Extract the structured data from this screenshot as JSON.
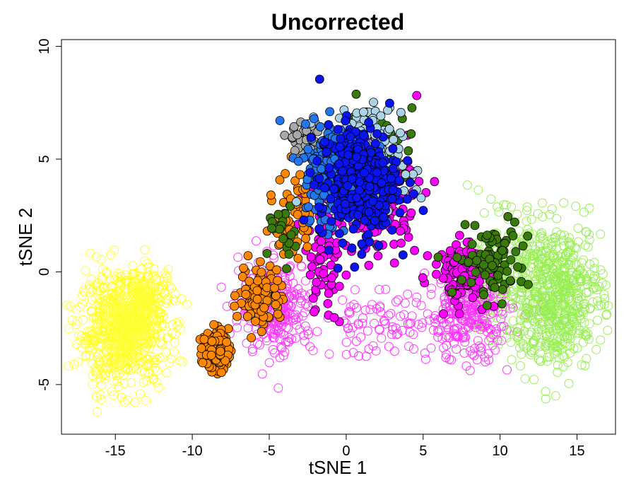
{
  "chart_data": {
    "type": "scatter",
    "title": "Uncorrected",
    "xlabel": "tSNE 1",
    "ylabel": "tSNE 2",
    "xlim": [
      -18.5,
      17.5
    ],
    "ylim": [
      -7.2,
      10.3
    ],
    "x_ticks": [
      -15,
      -10,
      -5,
      0,
      5,
      10,
      15
    ],
    "y_ticks": [
      -5,
      0,
      5,
      10
    ],
    "tick_labels_x": [
      "-15",
      "-10",
      "-5",
      "0",
      "5",
      "10",
      "15"
    ],
    "tick_labels_y": [
      "-5",
      "0",
      "5",
      "10"
    ],
    "grid": false,
    "legend": "none",
    "marker_style": {
      "filled_outline": "#000000",
      "open_marker": "circle"
    },
    "series": [
      {
        "color": "#FFFF33",
        "marker": "open",
        "clusters": [
          {
            "center": [
              -14.5,
              -2.6
            ],
            "spread": [
              1.9,
              1.6
            ],
            "n": 700
          },
          {
            "center": [
              -13.0,
              -1.2
            ],
            "spread": [
              1.2,
              1.0
            ],
            "n": 150
          }
        ]
      },
      {
        "color": "#FF33FF",
        "marker": "open",
        "clusters": [
          {
            "center": [
              -4.5,
              -1.6
            ],
            "spread": [
              1.6,
              1.4
            ],
            "n": 260
          },
          {
            "center": [
              8.0,
              -1.8
            ],
            "spread": [
              1.8,
              1.4
            ],
            "n": 300
          },
          {
            "center": [
              2.0,
              -2.4
            ],
            "spread": [
              2.5,
              0.9
            ],
            "n": 80
          }
        ]
      },
      {
        "color": "#99EE55",
        "marker": "open",
        "clusters": [
          {
            "center": [
              13.5,
              -1.0
            ],
            "spread": [
              2.1,
              2.1
            ],
            "n": 650
          },
          {
            "center": [
              10.0,
              0.5
            ],
            "spread": [
              1.2,
              1.4
            ],
            "n": 120
          }
        ]
      },
      {
        "color": "#FF00FF",
        "marker": "filled",
        "clusters": [
          {
            "center": [
              2.0,
              3.0
            ],
            "spread": [
              1.8,
              1.5
            ],
            "n": 160
          },
          {
            "center": [
              7.5,
              0.0
            ],
            "spread": [
              1.2,
              0.9
            ],
            "n": 110
          },
          {
            "center": [
              -1.5,
              0.5
            ],
            "spread": [
              0.9,
              1.6
            ],
            "n": 70
          }
        ]
      },
      {
        "color": "#FF8800",
        "marker": "filled",
        "clusters": [
          {
            "center": [
              -8.5,
              -3.5
            ],
            "spread": [
              0.55,
              0.6
            ],
            "n": 160
          },
          {
            "center": [
              -5.5,
              -1.0
            ],
            "spread": [
              1.0,
              1.0
            ],
            "n": 90
          },
          {
            "center": [
              -3.5,
              2.5
            ],
            "spread": [
              0.8,
              1.4
            ],
            "n": 60
          }
        ]
      },
      {
        "color": "#A8A8A8",
        "marker": "filled",
        "clusters": [
          {
            "center": [
              -2.5,
              5.8
            ],
            "spread": [
              0.8,
              0.5
            ],
            "n": 70
          }
        ]
      },
      {
        "color": "#3A7A0A",
        "marker": "filled",
        "clusters": [
          {
            "center": [
              9.5,
              0.5
            ],
            "spread": [
              1.6,
              1.1
            ],
            "n": 90
          },
          {
            "center": [
              2.5,
              5.5
            ],
            "spread": [
              1.5,
              2.0
            ],
            "n": 30
          },
          {
            "center": [
              -4.0,
              1.5
            ],
            "spread": [
              0.7,
              1.0
            ],
            "n": 20
          }
        ]
      },
      {
        "color": "#ABD3E6",
        "marker": "filled",
        "clusters": [
          {
            "center": [
              1.0,
              4.8
            ],
            "spread": [
              1.7,
              1.5
            ],
            "n": 260
          }
        ]
      },
      {
        "color": "#2277EE",
        "marker": "filled",
        "clusters": [
          {
            "center": [
              -0.5,
              4.5
            ],
            "spread": [
              1.5,
              1.4
            ],
            "n": 300
          }
        ]
      },
      {
        "color": "#0A14F0",
        "marker": "filled",
        "clusters": [
          {
            "center": [
              0.8,
              4.0
            ],
            "spread": [
              1.7,
              1.7
            ],
            "n": 320
          }
        ]
      }
    ]
  }
}
